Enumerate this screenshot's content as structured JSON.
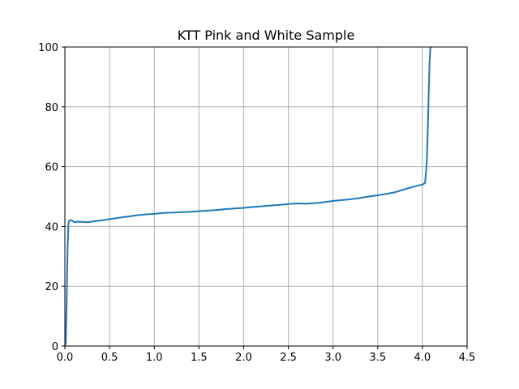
{
  "chart_data": {
    "type": "line",
    "title": "KTT Pink and White Sample",
    "xlabel": "",
    "ylabel": "",
    "xlim": [
      0,
      4.5
    ],
    "ylim": [
      0,
      100
    ],
    "xticks": [
      0,
      0.5,
      1,
      1.5,
      2,
      2.5,
      3,
      3.5,
      4,
      4.5
    ],
    "xtick_labels": [
      "0.0",
      "0.5",
      "1.0",
      "1.5",
      "2.0",
      "2.5",
      "3.0",
      "3.5",
      "4.0",
      "4.5"
    ],
    "yticks": [
      0,
      20,
      40,
      60,
      80,
      100
    ],
    "ytick_labels": [
      "0",
      "20",
      "40",
      "60",
      "80",
      "100"
    ],
    "grid": true,
    "colors": {
      "line": "#1f77b4",
      "grid": "#b0b0b0"
    },
    "series": [
      {
        "x": [
          0.0,
          0.01,
          0.02,
          0.03,
          0.04,
          0.05,
          0.06,
          0.08,
          0.1,
          0.12,
          0.15,
          0.2,
          0.25,
          0.3,
          0.35,
          0.4,
          0.5,
          0.6,
          0.7,
          0.8,
          0.9,
          1.0,
          1.1,
          1.2,
          1.3,
          1.4,
          1.5,
          1.6,
          1.7,
          1.8,
          1.9,
          2.0,
          2.1,
          2.2,
          2.3,
          2.4,
          2.5,
          2.6,
          2.7,
          2.8,
          2.9,
          3.0,
          3.1,
          3.2,
          3.3,
          3.4,
          3.5,
          3.6,
          3.7,
          3.8,
          3.9,
          4.0,
          4.03,
          4.05,
          4.06,
          4.07,
          4.08,
          4.09
        ],
        "y": [
          0.0,
          1.0,
          15.0,
          32.0,
          41.0,
          42.0,
          42.1,
          42.0,
          41.5,
          41.4,
          41.6,
          41.5,
          41.4,
          41.6,
          41.8,
          42.0,
          42.4,
          42.9,
          43.3,
          43.7,
          44.0,
          44.2,
          44.5,
          44.6,
          44.8,
          44.9,
          45.1,
          45.3,
          45.5,
          45.8,
          46.0,
          46.2,
          46.5,
          46.7,
          47.0,
          47.2,
          47.5,
          47.7,
          47.6,
          47.8,
          48.1,
          48.5,
          48.8,
          49.1,
          49.5,
          50.0,
          50.4,
          50.9,
          51.5,
          52.4,
          53.3,
          54.0,
          54.5,
          62.0,
          72.0,
          84.0,
          95.0,
          100.0
        ]
      }
    ]
  }
}
